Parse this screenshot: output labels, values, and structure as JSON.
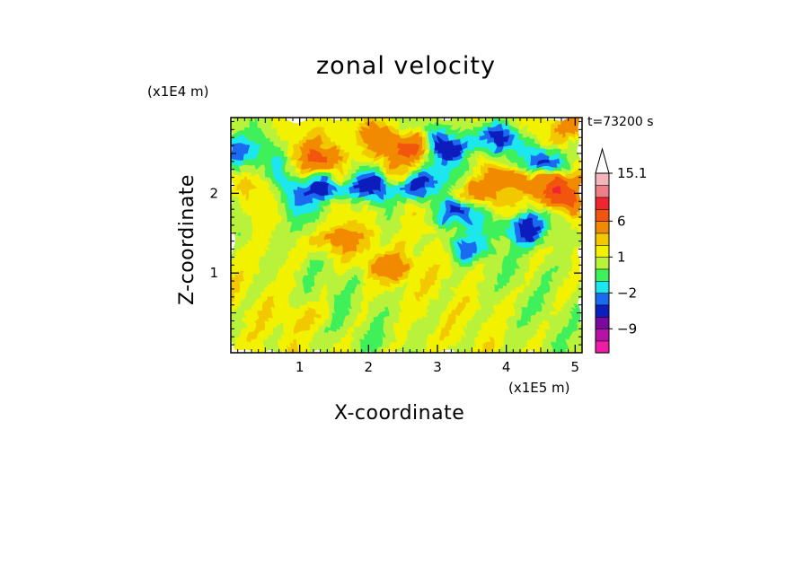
{
  "chart_data": {
    "type": "heatmap",
    "title": "zonal velocity",
    "xlabel": "X-coordinate",
    "ylabel": "Z-coordinate",
    "x_multiplier": "(x1E5 m)",
    "y_multiplier": "(x1E4 m)",
    "annotation": "t=73200 s",
    "xlim": [
      0,
      5.1
    ],
    "ylim": [
      0,
      2.95
    ],
    "x_ticks": [
      1,
      2,
      3,
      4,
      5
    ],
    "y_ticks": [
      1,
      2
    ],
    "colorbar": {
      "labels": [
        "15.1",
        "6",
        "1",
        "−2",
        "−9"
      ],
      "levels": [
        -15,
        -12,
        -9,
        -6,
        -3,
        -2,
        -1,
        0,
        1,
        2,
        3,
        6,
        9,
        12,
        15.1
      ],
      "colors": [
        "#ee1da8",
        "#b512a6",
        "#7a0a9f",
        "#0c1fbd",
        "#1a6bf0",
        "#1ee6ee",
        "#3ff05a",
        "#b9f23a",
        "#f2f200",
        "#f2c800",
        "#f28a00",
        "#f2550f",
        "#f0262e",
        "#ee7f88",
        "#f5b4bc"
      ]
    },
    "features": [
      {
        "x": 0.05,
        "z": 2.5,
        "value": -4
      },
      {
        "x": 1.3,
        "z": 2.45,
        "value": 5
      },
      {
        "x": 1.4,
        "z": 2.05,
        "value": -6
      },
      {
        "x": 2.0,
        "z": 2.05,
        "value": -4
      },
      {
        "x": 2.1,
        "z": 2.7,
        "value": 4
      },
      {
        "x": 2.6,
        "z": 2.55,
        "value": 6
      },
      {
        "x": 2.7,
        "z": 2.08,
        "value": -6
      },
      {
        "x": 3.2,
        "z": 2.6,
        "value": -6
      },
      {
        "x": 3.2,
        "z": 1.75,
        "value": -4
      },
      {
        "x": 3.4,
        "z": 2.0,
        "value": 4
      },
      {
        "x": 3.9,
        "z": 2.7,
        "value": -5
      },
      {
        "x": 4.2,
        "z": 2.2,
        "value": 5
      },
      {
        "x": 4.7,
        "z": 2.0,
        "value": 8
      },
      {
        "x": 4.3,
        "z": 1.55,
        "value": -5
      },
      {
        "x": 4.6,
        "z": 2.4,
        "value": -6
      },
      {
        "x": 5.0,
        "z": 2.85,
        "value": 4
      },
      {
        "x": 1.5,
        "z": 1.4,
        "value": 4
      },
      {
        "x": 2.3,
        "z": 1.1,
        "value": 3
      },
      {
        "x": 3.4,
        "z": 1.3,
        "value": -3
      },
      {
        "x": 1.0,
        "z": 0.5,
        "value": 1
      }
    ]
  }
}
